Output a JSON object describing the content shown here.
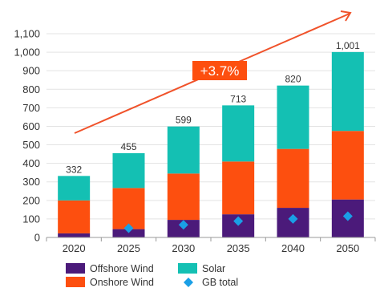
{
  "chart_data": {
    "type": "bar",
    "stacked": true,
    "categories": [
      "2020",
      "2025",
      "2030",
      "2035",
      "2040",
      "2050"
    ],
    "series": [
      {
        "name": "Offshore Wind",
        "color": "#4b1a7a",
        "values": [
          22,
          45,
          95,
          125,
          160,
          205
        ]
      },
      {
        "name": "Onshore Wind",
        "color": "#fd4f0f",
        "values": [
          178,
          222,
          250,
          285,
          318,
          370
        ]
      },
      {
        "name": "Solar",
        "color": "#14c0b3",
        "values": [
          132,
          188,
          254,
          303,
          342,
          426
        ]
      }
    ],
    "totals": [
      "332",
      "455",
      "599",
      "713",
      "820",
      "1,001"
    ],
    "gb_total": {
      "name": "GB total",
      "color": "#1a9fe6",
      "marker": "diamond",
      "values": [
        null,
        50,
        68,
        88,
        100,
        115
      ]
    },
    "yticks": [
      "0",
      "100",
      "200",
      "300",
      "400",
      "500",
      "600",
      "700",
      "800",
      "900",
      "1,000",
      "1,100"
    ],
    "ylim": [
      0,
      1100
    ],
    "annotation": {
      "text": "+3.7%",
      "arrow_color": "#f0522a"
    },
    "legend": {
      "items": [
        {
          "label": "Offshore Wind",
          "color": "#4b1a7a",
          "shape": "square"
        },
        {
          "label": "Solar",
          "color": "#14c0b3",
          "shape": "square"
        },
        {
          "label": "Onshore Wind",
          "color": "#fd4f0f",
          "shape": "square"
        },
        {
          "label": "GB total",
          "color": "#1a9fe6",
          "shape": "diamond"
        }
      ],
      "placement": "bottom"
    },
    "title": "",
    "xlabel": "",
    "ylabel": ""
  }
}
